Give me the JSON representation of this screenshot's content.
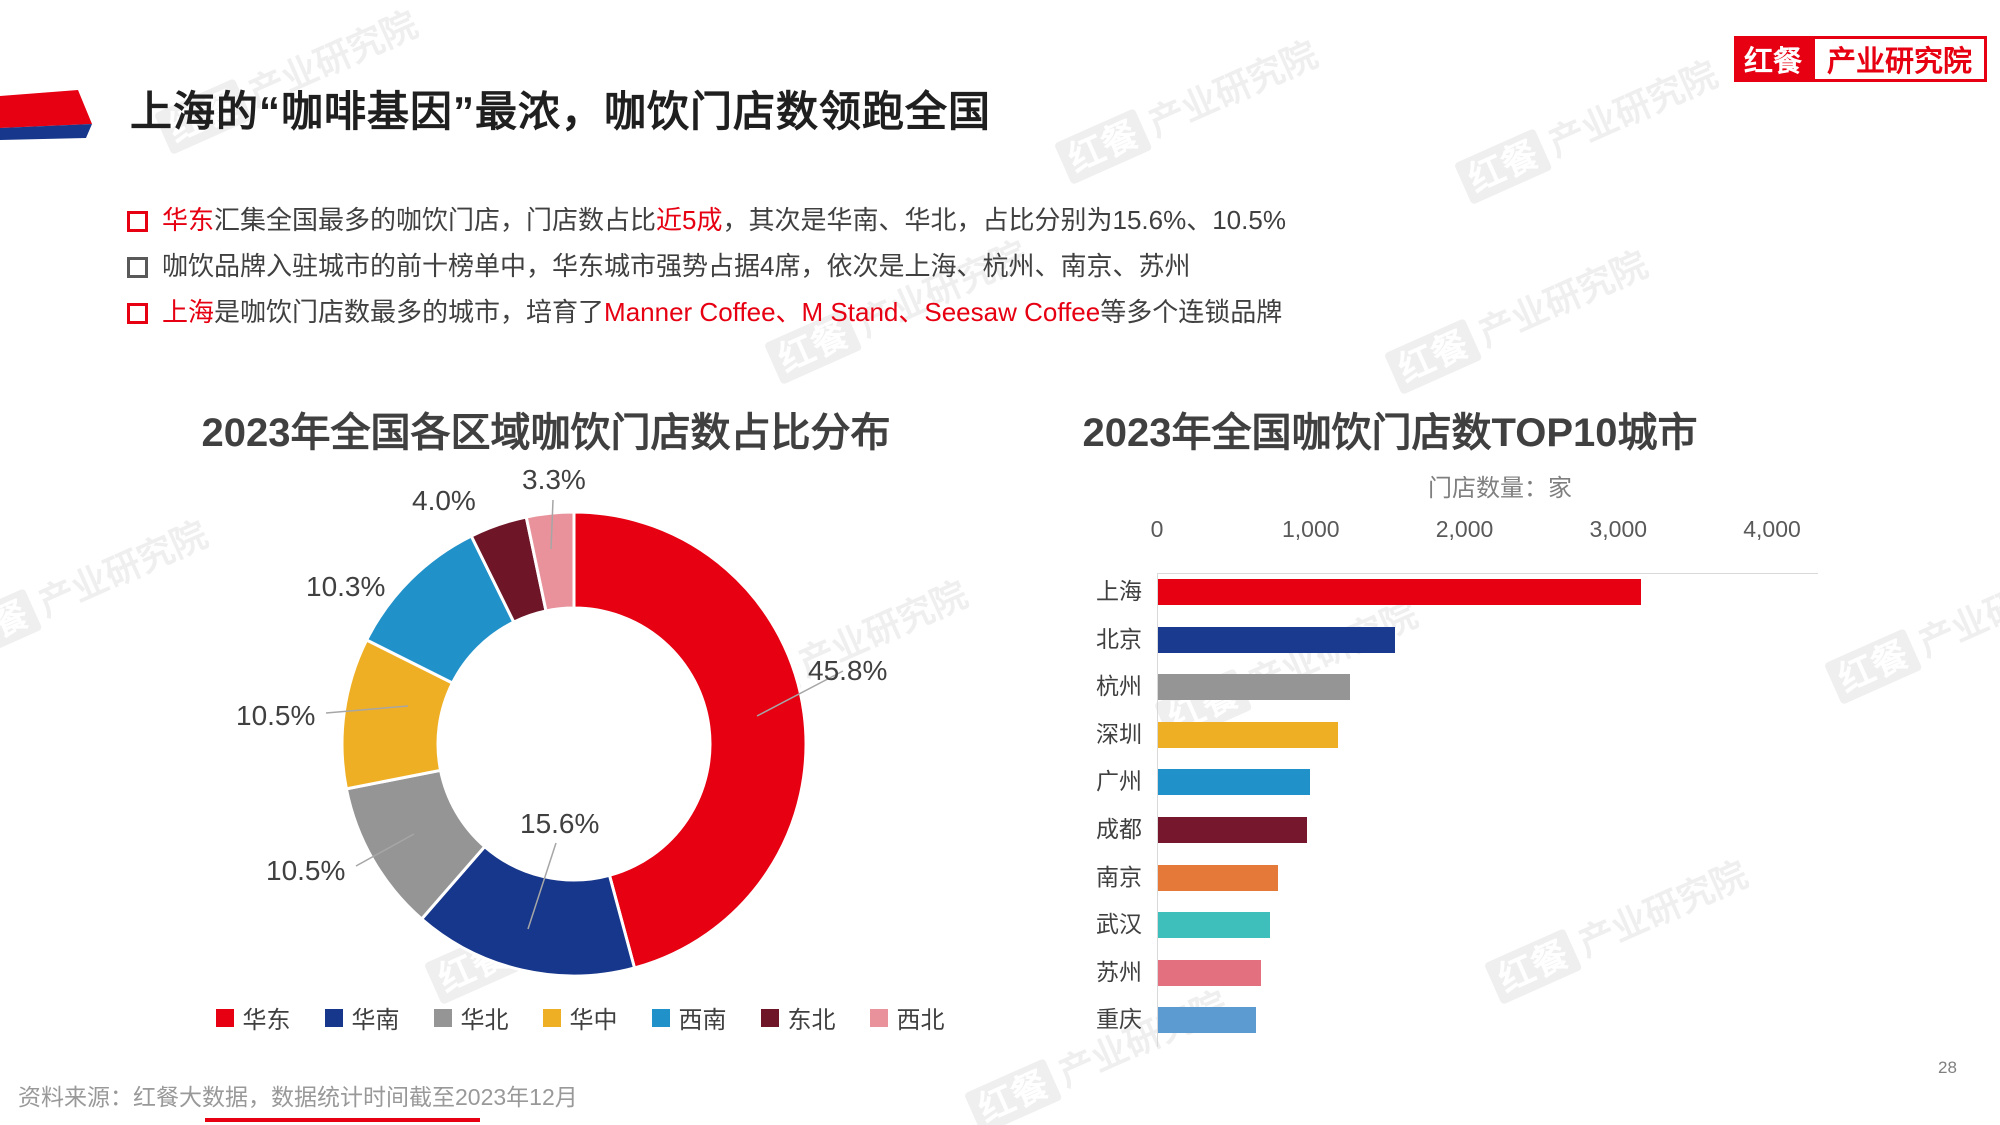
{
  "page": {
    "title": "上海的“咖啡基因”最浓，咖饮门店数领跑全国",
    "page_number": "28",
    "footer": "资料来源：红餐大数据，数据统计时间截至2023年12月",
    "logo": {
      "part1": "红餐",
      "part2": "产业研究院"
    },
    "watermark": {
      "part1": "红餐",
      "part2": "产业研究院"
    },
    "accent_color": "#E60012"
  },
  "bullets": [
    {
      "marker_color": "#E60012",
      "segments": [
        {
          "text": "华东",
          "color": "#E60012"
        },
        {
          "text": "汇集全国最多的咖饮门店，门店数占比",
          "color": "#404040"
        },
        {
          "text": "近5成",
          "color": "#E60012"
        },
        {
          "text": "，其次是华南、华北，占比分别为15.6%、10.5%",
          "color": "#404040"
        }
      ]
    },
    {
      "marker_color": "#595959",
      "segments": [
        {
          "text": "咖饮品牌入驻城市的前十榜单中，华东城市强势占据4席，依次是上海、杭州、南京、苏州",
          "color": "#404040"
        }
      ]
    },
    {
      "marker_color": "#E60012",
      "segments": [
        {
          "text": "上海",
          "color": "#E60012"
        },
        {
          "text": "是咖饮门店数最多的城市，培育了",
          "color": "#404040"
        },
        {
          "text": "Manner Coffee、M Stand、Seesaw Coffee",
          "color": "#E60012"
        },
        {
          "text": "等多个连锁品牌",
          "color": "#404040"
        }
      ]
    }
  ],
  "chart_data": [
    {
      "type": "pie",
      "donut": true,
      "title": "2023年全国各区域咖饮门店数占比分布",
      "unit": "%",
      "legend_position": "bottom",
      "start_angle": "top-clockwise",
      "slices": [
        {
          "label": "华东",
          "value": 45.8,
          "pct": "45.8%",
          "color": "#E60012"
        },
        {
          "label": "华南",
          "value": 15.6,
          "pct": "15.6%",
          "color": "#17378C"
        },
        {
          "label": "华北",
          "value": 10.5,
          "pct": "10.5%",
          "color": "#959595"
        },
        {
          "label": "华中",
          "value": 10.5,
          "pct": "10.5%",
          "color": "#EFAF25"
        },
        {
          "label": "西南",
          "value": 10.3,
          "pct": "10.3%",
          "color": "#2191C9"
        },
        {
          "label": "东北",
          "value": 4.0,
          "pct": "4.0%",
          "color": "#6E1628"
        },
        {
          "label": "西北",
          "value": 3.3,
          "pct": "3.3%",
          "color": "#E9929B"
        }
      ]
    },
    {
      "type": "bar",
      "orientation": "horizontal",
      "title": "2023年全国咖饮门店数TOP10城市",
      "subtitle": "门店数量：家",
      "xlim": [
        0,
        4000
      ],
      "x_ticks": [
        "0",
        "1,000",
        "2,000",
        "3,000",
        "4,000"
      ],
      "grid": false,
      "categories": [
        "上海",
        "北京",
        "杭州",
        "深圳",
        "广州",
        "成都",
        "南京",
        "武汉",
        "苏州",
        "重庆"
      ],
      "values": [
        3140,
        1540,
        1250,
        1170,
        990,
        970,
        780,
        730,
        670,
        640
      ],
      "colors": [
        "#E60012",
        "#1A3A8F",
        "#959595",
        "#EFAF25",
        "#2191C9",
        "#76172D",
        "#E4793A",
        "#3FBFBC",
        "#E2707E",
        "#5C9AD2"
      ]
    }
  ]
}
